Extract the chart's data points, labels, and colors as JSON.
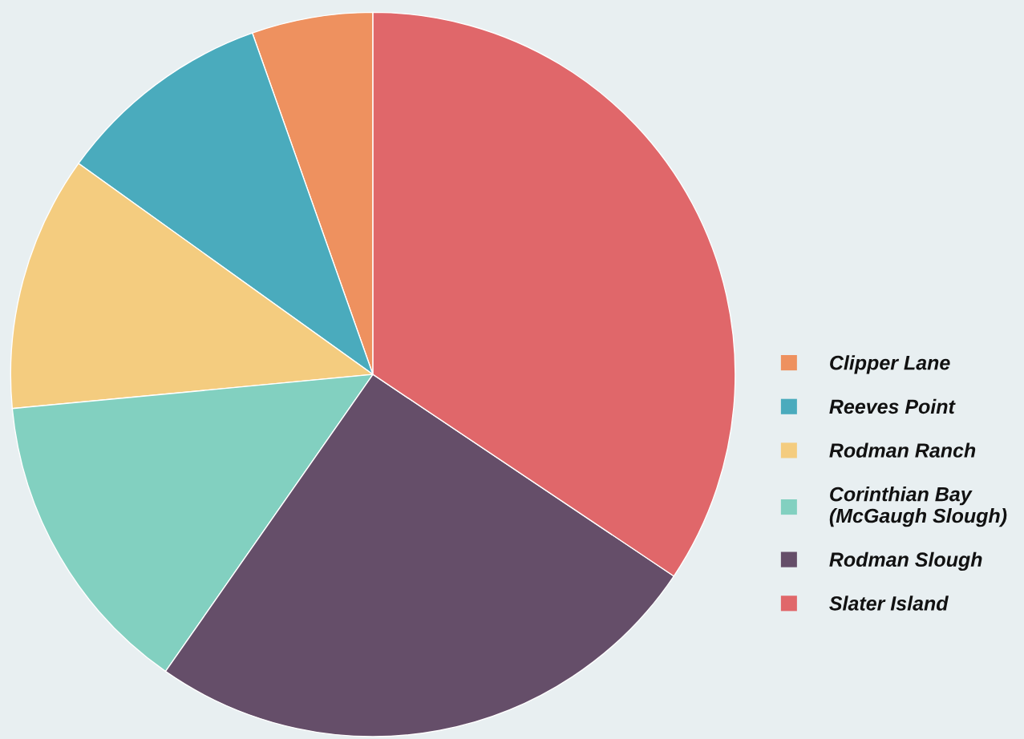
{
  "chart_data": {
    "type": "pie",
    "categories": [
      "Clipper Lane",
      "Reeves Point",
      "Rodman Ranch",
      "Corinthian Bay\n(McGaugh Slough)",
      "Rodman Slough",
      "Slater Island"
    ],
    "values": [
      5.4,
      9.7,
      11.4,
      13.8,
      25.3,
      34.4
    ],
    "colors": [
      "#ee915f",
      "#4aabbd",
      "#f4cc7f",
      "#82d0c0",
      "#654e69",
      "#e0676a"
    ],
    "legend": "right"
  }
}
